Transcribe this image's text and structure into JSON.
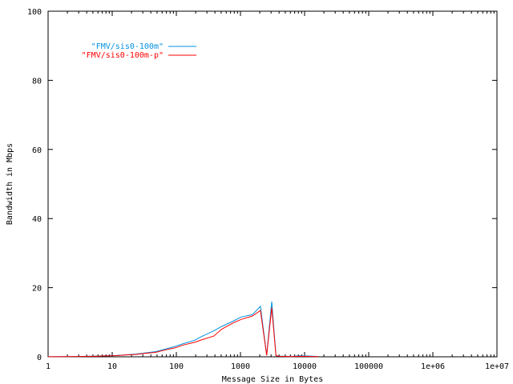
{
  "chart_data": {
    "type": "line",
    "title": "",
    "xlabel": "Message Size in Bytes",
    "ylabel": "Bandwidth in Mbps",
    "xscale": "log",
    "xlim": [
      1,
      10000000
    ],
    "ylim": [
      0,
      100
    ],
    "grid": false,
    "legend_position": "top-left",
    "x_ticks": [
      1,
      10,
      100,
      1000,
      10000,
      100000,
      1000000,
      10000000
    ],
    "x_tick_labels": [
      "1",
      "10",
      "100",
      "1000",
      "10000",
      "100000",
      "1e+06",
      "1e+07"
    ],
    "y_ticks": [
      0,
      20,
      40,
      60,
      80,
      100
    ],
    "y_tick_labels": [
      "0",
      "20",
      "40",
      "60",
      "80",
      "100"
    ],
    "series": [
      {
        "name": "\"FMV/sis0-100m\"",
        "color": "#0090e0",
        "x": [
          1,
          2,
          3,
          4,
          6,
          8,
          12,
          16,
          24,
          32,
          48,
          64,
          96,
          128,
          192,
          256,
          384,
          512,
          768,
          1024,
          1536,
          2048,
          2560,
          3072,
          3584,
          4096,
          6144,
          8192,
          12288,
          16384
        ],
        "y": [
          0.02,
          0.05,
          0.1,
          0.15,
          0.2,
          0.3,
          0.4,
          0.55,
          0.8,
          1.1,
          1.5,
          2.1,
          3.0,
          3.8,
          4.8,
          6.0,
          7.5,
          8.8,
          10.3,
          11.5,
          12.2,
          14.6,
          0.5,
          16.0,
          0.3,
          0.2,
          0.1,
          0.3,
          0.2,
          0.1
        ]
      },
      {
        "name": "\"FMV/sis0-100m-p\"",
        "color": "#ff0000",
        "x": [
          1,
          2,
          3,
          4,
          6,
          8,
          12,
          16,
          24,
          32,
          48,
          64,
          96,
          128,
          192,
          256,
          384,
          512,
          768,
          1024,
          1536,
          2048,
          2560,
          3072,
          3584,
          4096,
          6144,
          8192,
          12288,
          16384
        ],
        "y": [
          0.02,
          0.05,
          0.1,
          0.12,
          0.18,
          0.25,
          0.35,
          0.5,
          0.7,
          1.0,
          1.3,
          1.9,
          2.6,
          3.4,
          4.2,
          5.0,
          6.0,
          8.0,
          9.8,
          10.8,
          11.8,
          13.4,
          0.4,
          14.2,
          0.3,
          0.15,
          0.08,
          0.15,
          0.1,
          0.05
        ]
      }
    ]
  }
}
